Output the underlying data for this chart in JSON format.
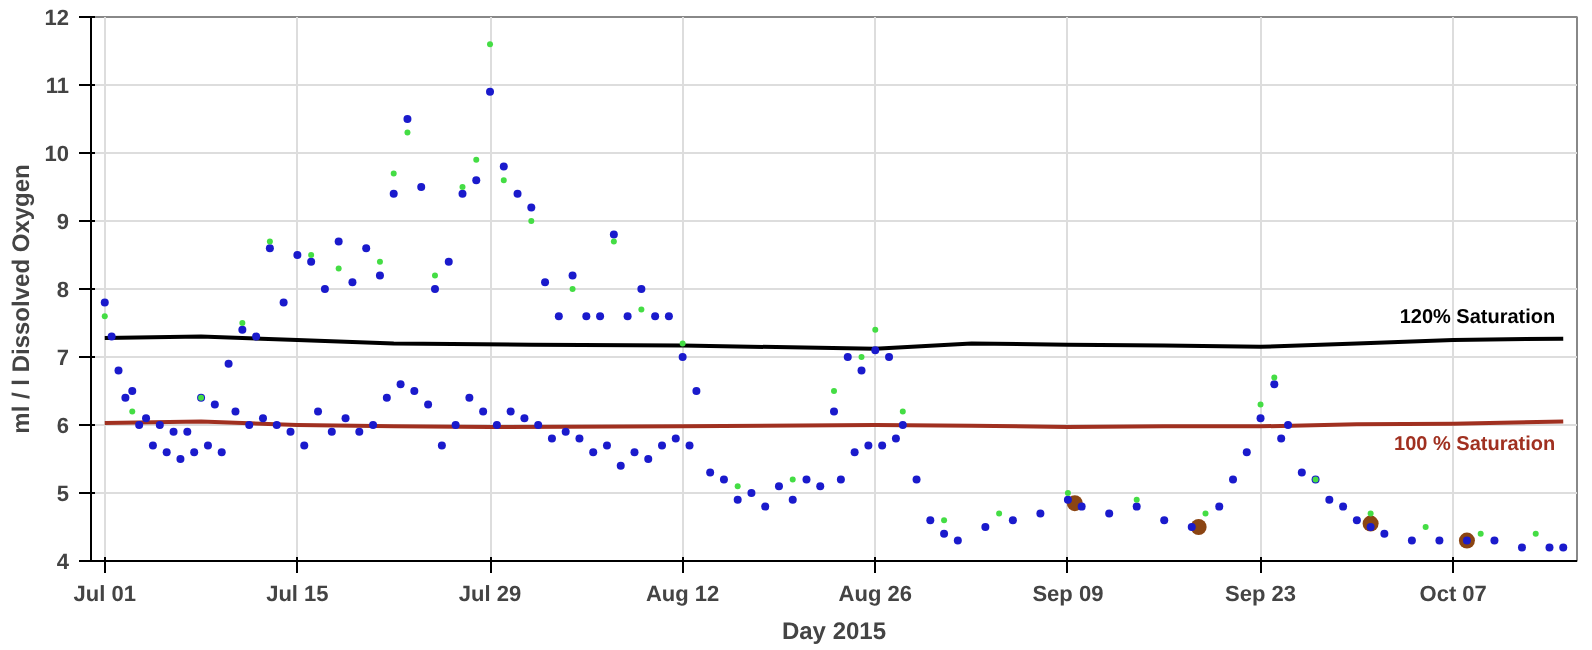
{
  "chart_data": {
    "type": "scatter",
    "xlabel": "Day 2015",
    "ylabel": "ml / l    Dissolved Oxygen",
    "xlim": [
      "2015-06-30",
      "2015-10-16"
    ],
    "ylim": [
      4,
      12
    ],
    "xticks": [
      {
        "value": "2015-07-01",
        "label": "Jul 01"
      },
      {
        "value": "2015-07-15",
        "label": "Jul 15"
      },
      {
        "value": "2015-07-29",
        "label": "Jul 29"
      },
      {
        "value": "2015-08-12",
        "label": "Aug 12"
      },
      {
        "value": "2015-08-26",
        "label": "Aug 26"
      },
      {
        "value": "2015-09-09",
        "label": "Sep 09"
      },
      {
        "value": "2015-09-23",
        "label": "Sep 23"
      },
      {
        "value": "2015-10-07",
        "label": "Oct 07"
      }
    ],
    "yticks": [
      4,
      5,
      6,
      7,
      8,
      9,
      10,
      11,
      12
    ],
    "grid": true,
    "marker": "circle",
    "series": [
      {
        "type": "line",
        "name": "120% Saturation",
        "marker": "none",
        "color": "#000000",
        "x": [
          "2015-07-01",
          "2015-07-08",
          "2015-07-15",
          "2015-07-22",
          "2015-08-01",
          "2015-08-12",
          "2015-08-26",
          "2015-09-02",
          "2015-09-09",
          "2015-09-16",
          "2015-09-23",
          "2015-09-30",
          "2015-10-07",
          "2015-10-15"
        ],
        "values": [
          7.28,
          7.3,
          7.25,
          7.2,
          7.18,
          7.17,
          7.12,
          7.2,
          7.18,
          7.17,
          7.15,
          7.2,
          7.25,
          7.27
        ]
      },
      {
        "type": "line",
        "name": "100 % Saturation",
        "marker": "none",
        "color": "#a03020",
        "x": [
          "2015-07-01",
          "2015-07-08",
          "2015-07-15",
          "2015-07-22",
          "2015-07-29",
          "2015-08-12",
          "2015-08-26",
          "2015-09-02",
          "2015-09-09",
          "2015-09-16",
          "2015-09-23",
          "2015-09-30",
          "2015-10-07",
          "2015-10-15"
        ],
        "values": [
          6.03,
          6.05,
          6.0,
          5.98,
          5.97,
          5.98,
          6.0,
          5.99,
          5.97,
          5.98,
          5.98,
          6.01,
          6.02,
          6.05
        ]
      },
      {
        "color": "#1a1acc",
        "x": [
          "2015-07-01",
          "2015-07-01T12:00",
          "2015-07-02",
          "2015-07-02T12:00",
          "2015-07-03",
          "2015-07-03T12:00",
          "2015-07-04",
          "2015-07-04T12:00",
          "2015-07-05",
          "2015-07-05T12:00",
          "2015-07-06",
          "2015-07-06T12:00",
          "2015-07-07",
          "2015-07-07T12:00",
          "2015-07-08",
          "2015-07-08T12:00",
          "2015-07-09",
          "2015-07-09T12:00",
          "2015-07-10",
          "2015-07-10T12:00",
          "2015-07-11",
          "2015-07-11T12:00",
          "2015-07-12",
          "2015-07-12T12:00",
          "2015-07-13",
          "2015-07-13T12:00",
          "2015-07-14",
          "2015-07-14T12:00",
          "2015-07-15",
          "2015-07-15T12:00",
          "2015-07-16",
          "2015-07-16T12:00",
          "2015-07-17",
          "2015-07-17T12:00",
          "2015-07-18",
          "2015-07-18T12:00",
          "2015-07-19",
          "2015-07-19T12:00",
          "2015-07-20",
          "2015-07-20T12:00",
          "2015-07-21",
          "2015-07-21T12:00",
          "2015-07-22",
          "2015-07-22T12:00",
          "2015-07-23",
          "2015-07-23T12:00",
          "2015-07-24",
          "2015-07-24T12:00",
          "2015-07-25",
          "2015-07-25T12:00",
          "2015-07-26",
          "2015-07-26T12:00",
          "2015-07-27",
          "2015-07-27T12:00",
          "2015-07-28",
          "2015-07-28T12:00",
          "2015-07-29",
          "2015-07-29T12:00",
          "2015-07-30",
          "2015-07-30T12:00",
          "2015-07-31",
          "2015-07-31T12:00",
          "2015-08-01",
          "2015-08-01T12:00",
          "2015-08-02",
          "2015-08-02T12:00",
          "2015-08-03",
          "2015-08-03T12:00",
          "2015-08-04",
          "2015-08-04T12:00",
          "2015-08-05",
          "2015-08-05T12:00",
          "2015-08-06",
          "2015-08-06T12:00",
          "2015-08-07",
          "2015-08-07T12:00",
          "2015-08-08",
          "2015-08-08T12:00",
          "2015-08-09",
          "2015-08-09T12:00",
          "2015-08-10",
          "2015-08-10T12:00",
          "2015-08-11",
          "2015-08-11T12:00",
          "2015-08-12",
          "2015-08-12T12:00",
          "2015-08-13",
          "2015-08-14",
          "2015-08-15",
          "2015-08-16",
          "2015-08-17",
          "2015-08-18",
          "2015-08-19",
          "2015-08-20",
          "2015-08-21",
          "2015-08-22",
          "2015-08-23",
          "2015-08-23T12:00",
          "2015-08-24",
          "2015-08-24T12:00",
          "2015-08-25",
          "2015-08-25T12:00",
          "2015-08-26",
          "2015-08-26T12:00",
          "2015-08-27",
          "2015-08-27T12:00",
          "2015-08-28",
          "2015-08-29",
          "2015-08-30",
          "2015-08-31",
          "2015-09-01",
          "2015-09-03",
          "2015-09-05",
          "2015-09-07",
          "2015-09-09",
          "2015-09-10",
          "2015-09-12",
          "2015-09-14",
          "2015-09-16",
          "2015-09-18",
          "2015-09-20",
          "2015-09-21",
          "2015-09-22",
          "2015-09-23",
          "2015-09-24",
          "2015-09-24T12:00",
          "2015-09-25",
          "2015-09-26",
          "2015-09-27",
          "2015-09-28",
          "2015-09-29",
          "2015-09-30",
          "2015-10-01",
          "2015-10-02",
          "2015-10-04",
          "2015-10-06",
          "2015-10-08",
          "2015-10-10",
          "2015-10-12",
          "2015-10-14",
          "2015-10-15"
        ],
        "values": [
          7.8,
          7.3,
          6.8,
          6.4,
          6.5,
          6.0,
          6.1,
          5.7,
          6.0,
          5.6,
          5.9,
          5.5,
          5.9,
          5.6,
          6.4,
          5.7,
          6.3,
          5.6,
          6.9,
          6.2,
          7.4,
          6.0,
          7.3,
          6.1,
          8.6,
          6.0,
          7.8,
          5.9,
          8.5,
          5.7,
          8.4,
          6.2,
          8.0,
          5.9,
          8.7,
          6.1,
          8.1,
          5.9,
          8.6,
          6.0,
          8.2,
          6.4,
          9.4,
          6.6,
          10.5,
          6.5,
          9.5,
          6.3,
          8.0,
          5.7,
          8.4,
          6.0,
          9.4,
          6.4,
          9.6,
          6.2,
          10.9,
          6.0,
          9.8,
          6.2,
          9.4,
          6.1,
          9.2,
          6.0,
          8.1,
          5.8,
          7.6,
          5.9,
          8.2,
          5.8,
          7.6,
          5.6,
          7.6,
          5.7,
          8.8,
          5.4,
          7.6,
          5.6,
          8.0,
          5.5,
          7.6,
          5.7,
          7.6,
          5.8,
          7.0,
          5.7,
          6.5,
          5.3,
          5.2,
          4.9,
          5.0,
          4.8,
          5.1,
          4.9,
          5.2,
          5.1,
          6.2,
          5.2,
          7.0,
          5.6,
          6.8,
          5.7,
          7.1,
          5.7,
          7.0,
          5.8,
          6.0,
          5.2,
          4.6,
          4.4,
          4.3,
          4.5,
          4.6,
          4.7,
          4.9,
          4.8,
          4.7,
          4.8,
          4.6,
          4.5,
          4.8,
          5.2,
          5.6,
          6.1,
          6.6,
          5.8,
          6.0,
          5.3,
          5.2,
          4.9,
          4.8,
          4.6,
          4.5,
          4.4,
          4.3,
          4.3,
          4.3,
          4.3,
          4.2,
          4.2,
          4.2
        ]
      },
      {
        "color": "#44dd44",
        "x": [
          "2015-07-01",
          "2015-07-03",
          "2015-07-08",
          "2015-07-11",
          "2015-07-13",
          "2015-07-16",
          "2015-07-18",
          "2015-07-21",
          "2015-07-22",
          "2015-07-23",
          "2015-07-25",
          "2015-07-27",
          "2015-07-28",
          "2015-07-29",
          "2015-07-30",
          "2015-08-01",
          "2015-08-04",
          "2015-08-07",
          "2015-08-09",
          "2015-08-12",
          "2015-08-16",
          "2015-08-20",
          "2015-08-23",
          "2015-08-25",
          "2015-08-26",
          "2015-08-28",
          "2015-08-31",
          "2015-09-04",
          "2015-09-09",
          "2015-09-14",
          "2015-09-19",
          "2015-09-23",
          "2015-09-24",
          "2015-09-27",
          "2015-10-01",
          "2015-10-05",
          "2015-10-09",
          "2015-10-13"
        ],
        "values": [
          7.6,
          6.2,
          6.4,
          7.5,
          8.7,
          8.5,
          8.3,
          8.4,
          9.7,
          10.3,
          8.2,
          9.5,
          9.9,
          11.6,
          9.6,
          9.0,
          8.0,
          8.7,
          7.7,
          7.2,
          5.1,
          5.2,
          6.5,
          7.0,
          7.4,
          6.2,
          4.6,
          4.7,
          5.0,
          4.9,
          4.7,
          6.3,
          6.7,
          5.2,
          4.7,
          4.5,
          4.4,
          4.4
        ]
      },
      {
        "color": "#8b4513",
        "x": [
          "2015-09-09T12:00",
          "2015-09-18T12:00",
          "2015-10-01",
          "2015-10-08"
        ],
        "values": [
          4.85,
          4.5,
          4.55,
          4.3
        ]
      }
    ]
  }
}
